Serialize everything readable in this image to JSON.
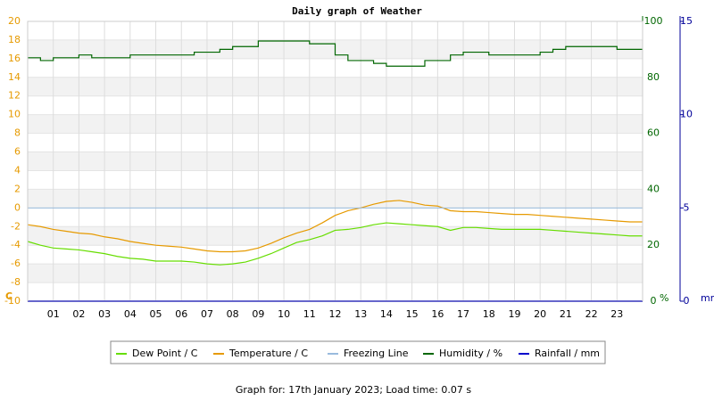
{
  "chart_data": {
    "type": "line",
    "title": "Daily graph of Weather",
    "footer": "Graph for: 17th January 2023; Load time: 0.07 s",
    "ylabel": "C",
    "y2label": "%",
    "y3label": "mm",
    "xlim": [
      0,
      24
    ],
    "xticks": [
      {
        "value": 1,
        "label": "01"
      },
      {
        "value": 2,
        "label": "02"
      },
      {
        "value": 3,
        "label": "03"
      },
      {
        "value": 4,
        "label": "04"
      },
      {
        "value": 5,
        "label": "05"
      },
      {
        "value": 6,
        "label": "06"
      },
      {
        "value": 7,
        "label": "07"
      },
      {
        "value": 8,
        "label": "08"
      },
      {
        "value": 9,
        "label": "09"
      },
      10,
      11,
      12,
      13,
      14,
      15,
      16,
      17,
      18,
      19,
      20,
      21,
      22,
      23
    ],
    "ylim": [
      -10,
      20
    ],
    "yticks": [
      -10,
      -8,
      -6,
      -4,
      -2,
      0,
      2,
      4,
      6,
      8,
      10,
      12,
      14,
      16,
      18,
      20
    ],
    "ycolor": "#e69a00",
    "y2lim": [
      0,
      100
    ],
    "y2ticks": [
      0,
      20,
      40,
      60,
      80,
      100
    ],
    "y2color": "#006600",
    "y3lim": [
      0,
      15
    ],
    "y3ticks": [
      0,
      5,
      10,
      15
    ],
    "y3color": "#000099",
    "grid": true,
    "x": [
      0,
      0.5,
      1,
      1.5,
      2,
      2.5,
      3,
      3.5,
      4,
      4.5,
      5,
      5.5,
      6,
      6.5,
      7,
      7.5,
      8,
      8.5,
      9,
      9.5,
      10,
      10.5,
      11,
      11.5,
      12,
      12.5,
      13,
      13.5,
      14,
      14.5,
      15,
      15.5,
      16,
      16.5,
      17,
      17.5,
      18,
      18.5,
      19,
      19.5,
      20,
      20.5,
      21,
      21.5,
      22,
      22.5,
      23,
      23.5,
      24
    ],
    "series": [
      {
        "name": "Dew Point / C",
        "color": "#66dd00",
        "axis": "y",
        "values": [
          -3.6,
          -4.0,
          -4.3,
          -4.4,
          -4.5,
          -4.7,
          -4.9,
          -5.2,
          -5.4,
          -5.5,
          -5.7,
          -5.7,
          -5.7,
          -5.8,
          -6.0,
          -6.1,
          -6.0,
          -5.8,
          -5.4,
          -4.9,
          -4.3,
          -3.7,
          -3.4,
          -3.0,
          -2.4,
          -2.3,
          -2.1,
          -1.8,
          -1.6,
          -1.7,
          -1.8,
          -1.9,
          -2.0,
          -2.4,
          -2.1,
          -2.1,
          -2.2,
          -2.3,
          -2.3,
          -2.3,
          -2.3,
          -2.4,
          -2.5,
          -2.6,
          -2.7,
          -2.8,
          -2.9,
          -3.0,
          -3.0
        ]
      },
      {
        "name": "Temperature / C",
        "color": "#e69a00",
        "axis": "y",
        "values": [
          -1.8,
          -2.0,
          -2.3,
          -2.5,
          -2.7,
          -2.8,
          -3.1,
          -3.3,
          -3.6,
          -3.8,
          -4.0,
          -4.1,
          -4.2,
          -4.4,
          -4.6,
          -4.7,
          -4.7,
          -4.6,
          -4.3,
          -3.8,
          -3.2,
          -2.7,
          -2.3,
          -1.6,
          -0.8,
          -0.3,
          0.0,
          0.4,
          0.7,
          0.8,
          0.6,
          0.3,
          0.2,
          -0.3,
          -0.4,
          -0.4,
          -0.5,
          -0.6,
          -0.7,
          -0.7,
          -0.8,
          -0.9,
          -1.0,
          -1.1,
          -1.2,
          -1.3,
          -1.4,
          -1.5,
          -1.5
        ]
      },
      {
        "name": "Freezing Line",
        "color": "#99bbdd",
        "axis": "y",
        "value": 0
      },
      {
        "name": "Humidity / %",
        "color": "#006600",
        "axis": "y2",
        "step": true,
        "values": [
          87,
          86,
          87,
          87,
          88,
          87,
          87,
          87,
          88,
          88,
          88,
          88,
          88,
          89,
          89,
          90,
          91,
          91,
          93,
          93,
          93,
          93,
          92,
          92,
          88,
          86,
          86,
          85,
          84,
          84,
          84,
          86,
          86,
          88,
          89,
          89,
          88,
          88,
          88,
          88,
          89,
          90,
          91,
          91,
          91,
          91,
          90,
          90,
          90
        ]
      },
      {
        "name": "Rainfall / mm",
        "color": "#0000cc",
        "axis": "y3",
        "x": [
          0,
          24
        ],
        "values": [
          0,
          0
        ]
      }
    ]
  }
}
